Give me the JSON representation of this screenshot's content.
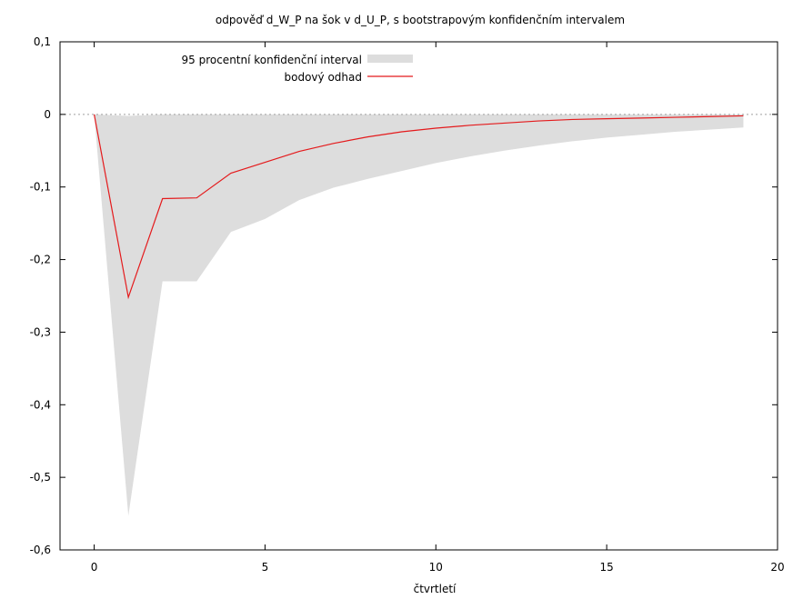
{
  "chart_data": {
    "type": "line",
    "title": "odpověď d_W_P na šok v d_U_P, s bootstrapovým konfidenčním intervalem",
    "xlabel": "čtvrtletí",
    "ylabel": "",
    "xlim": [
      -1,
      20
    ],
    "ylim": [
      -0.6,
      0.1
    ],
    "x_ticks": [
      0,
      5,
      10,
      15,
      20
    ],
    "x_tick_labels": [
      "0",
      "5",
      "10",
      "15",
      "20"
    ],
    "y_ticks": [
      0.1,
      0,
      -0.1,
      -0.2,
      -0.3,
      -0.4,
      -0.5,
      -0.6
    ],
    "y_tick_labels": [
      "0,1",
      "0",
      "-0,1",
      "-0,2",
      "-0,3",
      "-0,4",
      "-0,5",
      "-0,6"
    ],
    "zero_line": true,
    "grid": false,
    "legend_position": "top-left",
    "x": [
      0,
      1,
      2,
      3,
      4,
      5,
      6,
      7,
      8,
      9,
      10,
      11,
      12,
      13,
      14,
      15,
      16,
      17,
      18,
      19
    ],
    "series": [
      {
        "name": "bodový odhad",
        "kind": "line",
        "color": "#e41a1c",
        "values": [
          0.0,
          -0.252,
          -0.116,
          -0.115,
          -0.081,
          -0.066,
          -0.051,
          -0.04,
          -0.031,
          -0.024,
          -0.019,
          -0.015,
          -0.012,
          -0.009,
          -0.007,
          -0.006,
          -0.005,
          -0.004,
          -0.003,
          -0.002
        ]
      },
      {
        "name": "95 procentní konfidenční interval",
        "kind": "band",
        "color": "#dddddd",
        "lower": [
          0.0,
          -0.553,
          -0.23,
          -0.23,
          -0.162,
          -0.144,
          -0.118,
          -0.101,
          -0.089,
          -0.078,
          -0.067,
          -0.058,
          -0.05,
          -0.043,
          -0.037,
          -0.032,
          -0.028,
          -0.024,
          -0.021,
          -0.018
        ],
        "upper": [
          0.0,
          -0.002,
          0.0,
          0.0,
          0.0,
          0.0,
          0.0,
          0.0,
          0.0,
          0.0,
          0.0,
          0.0,
          0.0,
          0.0,
          0.0,
          0.0,
          0.0,
          0.0,
          0.0,
          0.0
        ]
      }
    ]
  }
}
